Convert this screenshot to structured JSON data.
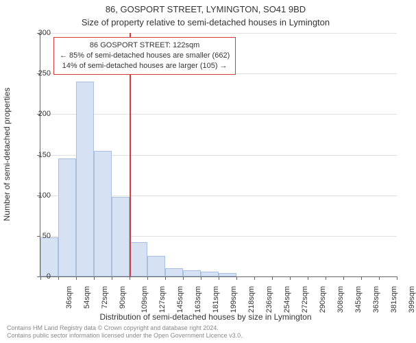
{
  "title_main": "86, GOSPORT STREET, LYMINGTON, SO41 9BD",
  "title_sub": "Size of property relative to semi-detached houses in Lymington",
  "y_axis_label": "Number of semi-detached properties",
  "x_axis_title": "Distribution of semi-detached houses by size in Lymington",
  "credits_line1": "Contains HM Land Registry data © Crown copyright and database right 2024.",
  "credits_line2": "Contains public sector information licensed under the Open Government Licence v3.0.",
  "chart": {
    "type": "histogram",
    "background_color": "#ffffff",
    "grid_color": "#e0e0e0",
    "axis_color": "#666666",
    "bar_fill": "#d6e2f3",
    "bar_border": "#a8bfe0",
    "marker_color": "#d63a3a",
    "ylim": [
      0,
      300
    ],
    "ytick_step": 50,
    "y_ticks": [
      0,
      50,
      100,
      150,
      200,
      250,
      300
    ],
    "categories": [
      "36sqm",
      "54sqm",
      "72sqm",
      "90sqm",
      "109sqm",
      "127sqm",
      "145sqm",
      "163sqm",
      "181sqm",
      "199sqm",
      "218sqm",
      "236sqm",
      "254sqm",
      "272sqm",
      "290sqm",
      "308sqm",
      "345sqm",
      "363sqm",
      "381sqm",
      "399sqm"
    ],
    "values": [
      48,
      145,
      240,
      155,
      98,
      42,
      25,
      10,
      8,
      6,
      4,
      0,
      0,
      0,
      0,
      0,
      0,
      0,
      0,
      0
    ],
    "marker_category_index": 5,
    "info_box": {
      "line1": "86 GOSPORT STREET: 122sqm",
      "line2": "← 85% of semi-detached houses are smaller (662)",
      "line3": "14% of semi-detached houses are larger (105) →"
    },
    "title_fontsize": 13,
    "label_fontsize": 12,
    "tick_fontsize": 11
  }
}
